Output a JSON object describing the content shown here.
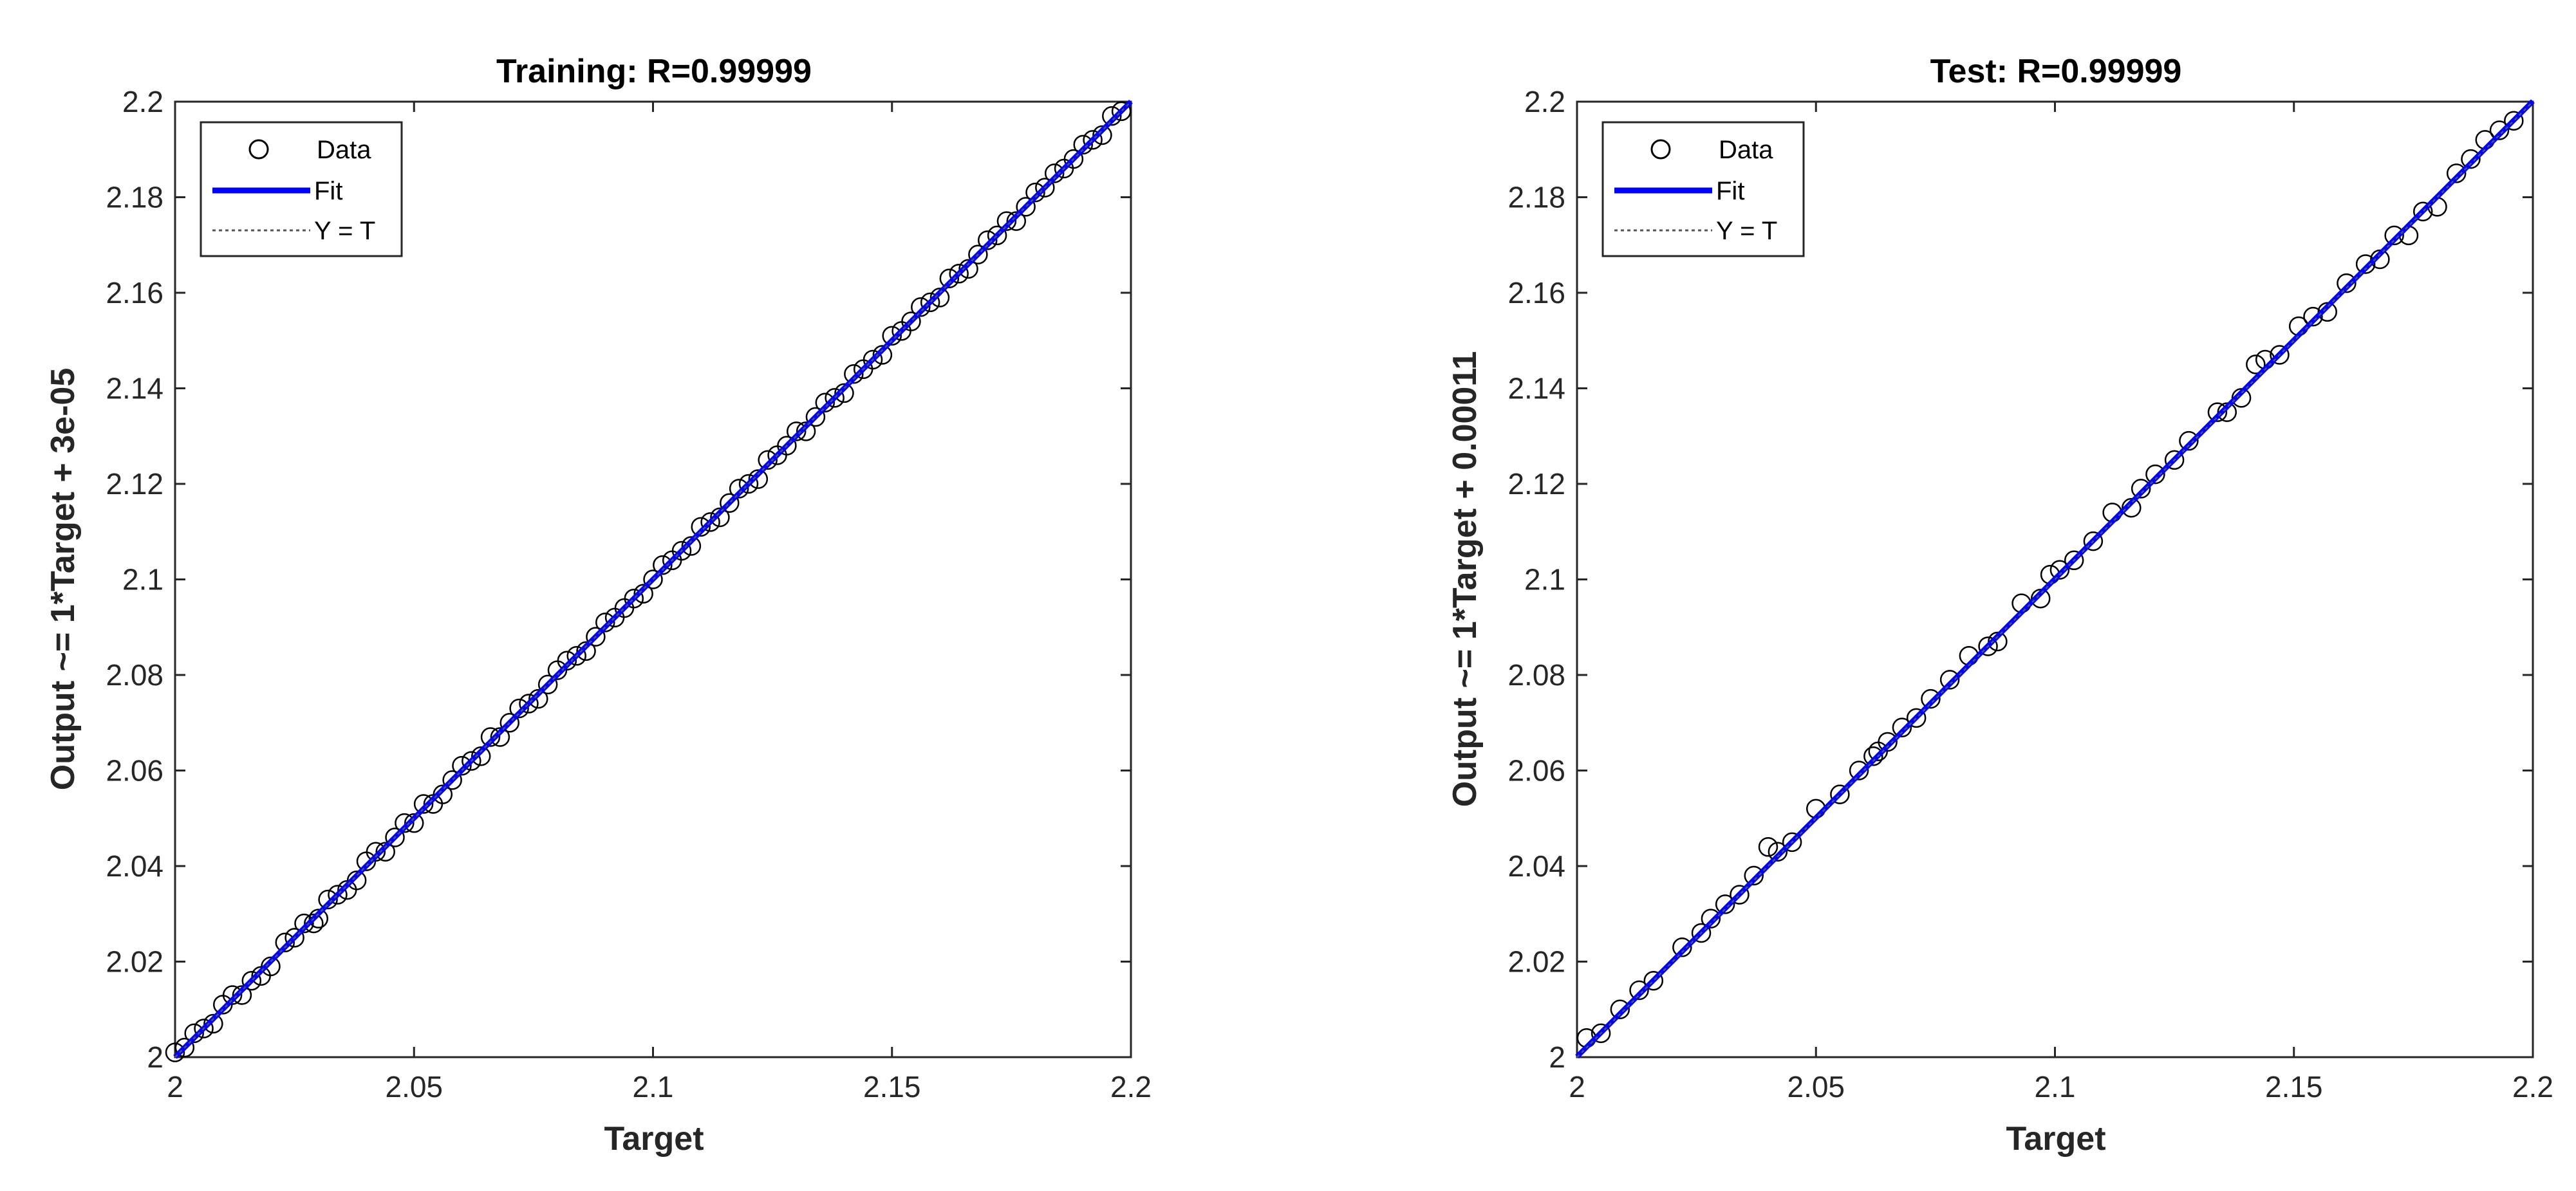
{
  "chart_data": [
    {
      "type": "scatter",
      "title": "Training: R=0.99999",
      "xlabel": "Target",
      "ylabel": "Output ~= 1*Target + 3e-05",
      "xlim": [
        2,
        2.2
      ],
      "ylim": [
        2,
        2.2
      ],
      "xticks": [
        "2",
        "2.05",
        "2.1",
        "2.15",
        "2.2"
      ],
      "yticks": [
        "2",
        "2.02",
        "2.04",
        "2.06",
        "2.08",
        "2.1",
        "2.12",
        "2.14",
        "2.16",
        "2.18",
        "2.2"
      ],
      "grid": false,
      "legend": {
        "placement": "top-left",
        "entries": [
          "Data",
          "Fit",
          "Y = T"
        ]
      },
      "colors": {
        "data": "#000000",
        "fit": "#0000ff",
        "identity": "#555555"
      },
      "fit": {
        "slope": 1,
        "intercept": 3e-05
      },
      "points": {
        "x": [
          2.0,
          2.002,
          2.004,
          2.006,
          2.008,
          2.01,
          2.012,
          2.014,
          2.016,
          2.018,
          2.02,
          2.023,
          2.025,
          2.027,
          2.029,
          2.03,
          2.032,
          2.034,
          2.036,
          2.038,
          2.04,
          2.042,
          2.044,
          2.046,
          2.048,
          2.05,
          2.052,
          2.054,
          2.056,
          2.058,
          2.06,
          2.062,
          2.064,
          2.066,
          2.068,
          2.07,
          2.072,
          2.074,
          2.076,
          2.078,
          2.08,
          2.082,
          2.084,
          2.086,
          2.088,
          2.09,
          2.092,
          2.094,
          2.096,
          2.098,
          2.1,
          2.102,
          2.104,
          2.106,
          2.108,
          2.11,
          2.112,
          2.114,
          2.116,
          2.118,
          2.12,
          2.122,
          2.124,
          2.126,
          2.128,
          2.13,
          2.132,
          2.134,
          2.136,
          2.138,
          2.14,
          2.142,
          2.144,
          2.146,
          2.148,
          2.15,
          2.152,
          2.154,
          2.156,
          2.158,
          2.16,
          2.162,
          2.164,
          2.166,
          2.168,
          2.17,
          2.172,
          2.174,
          2.176,
          2.178,
          2.18,
          2.182,
          2.184,
          2.186,
          2.188,
          2.19,
          2.192,
          2.194,
          2.196,
          2.198
        ],
        "y": [
          2.001,
          2.002,
          2.005,
          2.006,
          2.007,
          2.011,
          2.013,
          2.013,
          2.016,
          2.017,
          2.019,
          2.024,
          2.025,
          2.028,
          2.028,
          2.029,
          2.033,
          2.034,
          2.035,
          2.037,
          2.041,
          2.043,
          2.043,
          2.046,
          2.049,
          2.049,
          2.053,
          2.053,
          2.055,
          2.058,
          2.061,
          2.062,
          2.063,
          2.067,
          2.067,
          2.07,
          2.073,
          2.074,
          2.075,
          2.078,
          2.081,
          2.083,
          2.084,
          2.085,
          2.088,
          2.091,
          2.092,
          2.094,
          2.096,
          2.097,
          2.1,
          2.103,
          2.104,
          2.106,
          2.107,
          2.111,
          2.112,
          2.113,
          2.116,
          2.119,
          2.12,
          2.121,
          2.125,
          2.126,
          2.128,
          2.131,
          2.131,
          2.134,
          2.137,
          2.138,
          2.139,
          2.143,
          2.144,
          2.146,
          2.147,
          2.151,
          2.152,
          2.154,
          2.157,
          2.158,
          2.159,
          2.163,
          2.164,
          2.165,
          2.168,
          2.171,
          2.172,
          2.175,
          2.175,
          2.178,
          2.181,
          2.182,
          2.185,
          2.186,
          2.188,
          2.191,
          2.192,
          2.193,
          2.197,
          2.198
        ]
      }
    },
    {
      "type": "scatter",
      "title": "Test: R=0.99999",
      "xlabel": "Target",
      "ylabel": "Output ~= 1*Target + 0.00011",
      "xlim": [
        2,
        2.2
      ],
      "ylim": [
        2,
        2.2
      ],
      "xticks": [
        "2",
        "2.05",
        "2.1",
        "2.15",
        "2.2"
      ],
      "yticks": [
        "2",
        "2.02",
        "2.04",
        "2.06",
        "2.08",
        "2.1",
        "2.12",
        "2.14",
        "2.16",
        "2.18",
        "2.2"
      ],
      "grid": false,
      "legend": {
        "placement": "top-left",
        "entries": [
          "Data",
          "Fit",
          "Y = T"
        ]
      },
      "colors": {
        "data": "#000000",
        "fit": "#0000ff",
        "identity": "#555555"
      },
      "fit": {
        "slope": 1,
        "intercept": 0.00011
      },
      "points": {
        "x": [
          2.002,
          2.005,
          2.009,
          2.013,
          2.016,
          2.022,
          2.026,
          2.028,
          2.031,
          2.034,
          2.037,
          2.04,
          2.042,
          2.045,
          2.05,
          2.055,
          2.059,
          2.062,
          2.063,
          2.065,
          2.068,
          2.071,
          2.074,
          2.078,
          2.082,
          2.086,
          2.088,
          2.093,
          2.097,
          2.099,
          2.101,
          2.104,
          2.108,
          2.112,
          2.116,
          2.118,
          2.121,
          2.125,
          2.128,
          2.134,
          2.136,
          2.139,
          2.142,
          2.144,
          2.147,
          2.151,
          2.154,
          2.157,
          2.161,
          2.165,
          2.168,
          2.171,
          2.174,
          2.177,
          2.18,
          2.184,
          2.187,
          2.19,
          2.193,
          2.196
        ],
        "y": [
          2.004,
          2.005,
          2.01,
          2.014,
          2.016,
          2.023,
          2.026,
          2.029,
          2.032,
          2.034,
          2.038,
          2.044,
          2.043,
          2.045,
          2.052,
          2.055,
          2.06,
          2.063,
          2.064,
          2.066,
          2.069,
          2.071,
          2.075,
          2.079,
          2.084,
          2.086,
          2.087,
          2.095,
          2.096,
          2.101,
          2.102,
          2.104,
          2.108,
          2.114,
          2.115,
          2.119,
          2.122,
          2.125,
          2.129,
          2.135,
          2.135,
          2.138,
          2.145,
          2.146,
          2.147,
          2.153,
          2.155,
          2.156,
          2.162,
          2.166,
          2.167,
          2.172,
          2.172,
          2.177,
          2.178,
          2.185,
          2.188,
          2.192,
          2.194,
          2.196
        ]
      }
    }
  ]
}
